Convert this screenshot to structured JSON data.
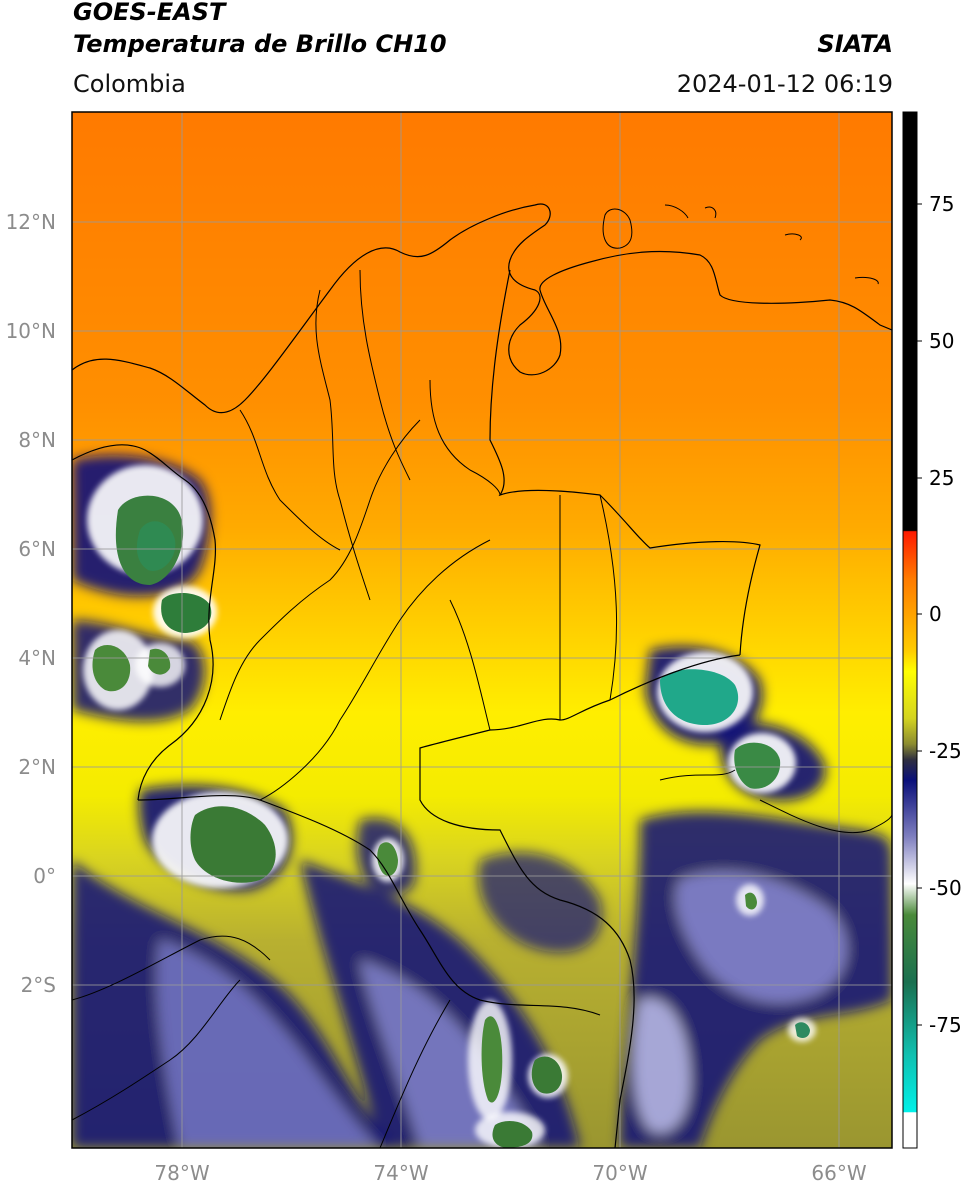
{
  "header": {
    "title_line1": "GOES-EAST",
    "title_line2": "Temperatura de Brillo CH10",
    "source": "SIATA",
    "region": "Colombia",
    "datetime": "2024-01-12 06:19"
  },
  "map": {
    "lon_labels": [
      "78°W",
      "74°W",
      "70°W",
      "66°W"
    ],
    "lat_labels": [
      "12°N",
      "10°N",
      "8°N",
      "6°N",
      "4°N",
      "2°N",
      "0°",
      "2°S"
    ]
  },
  "colorbar": {
    "tick_labels": [
      "75",
      "50",
      "25",
      "0",
      "-25",
      "-50",
      "-75"
    ],
    "colors": {
      "black": "#000000",
      "red": "#ff1a00",
      "orange": "#ff8c00",
      "yellow": "#ffee00",
      "olive": "#8c8c30",
      "navy": "#0a0f7a",
      "white": "#ffffff",
      "green": "#2e7d32",
      "teal": "#00e0d0"
    }
  },
  "colors": {
    "grid": "#999999",
    "tick_label": "#8c8c8c"
  }
}
